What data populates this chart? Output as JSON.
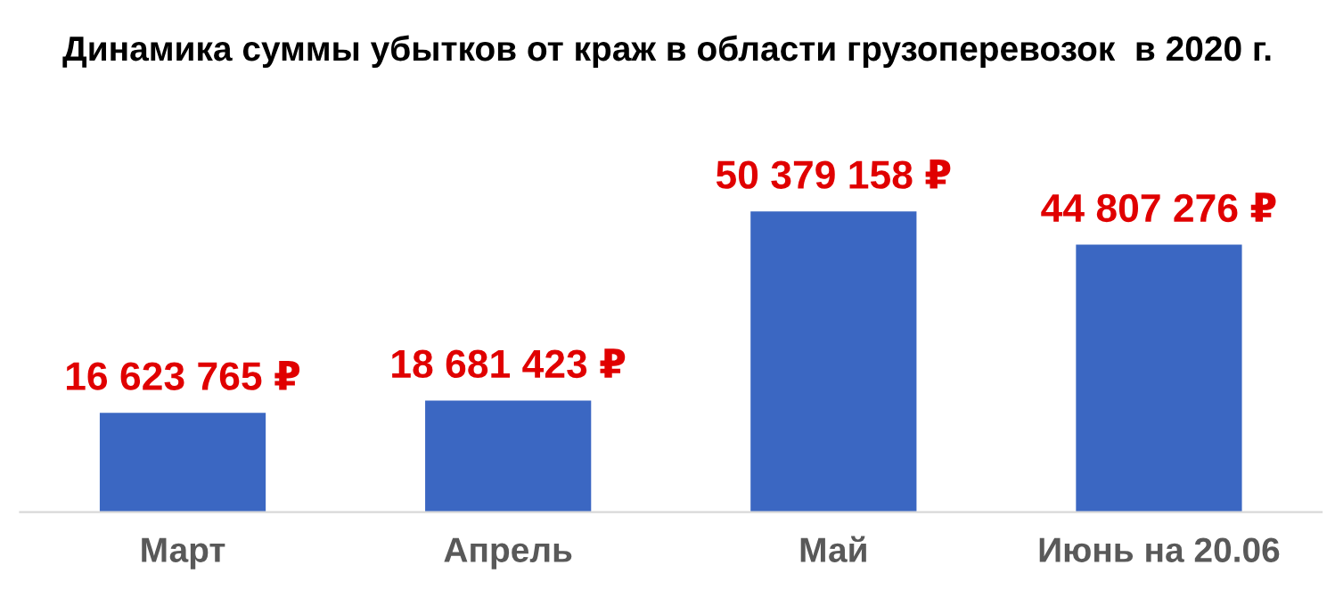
{
  "chart_data": {
    "type": "bar",
    "title": "Динамика суммы убытков от краж в области грузоперевозок  в 2020 г.",
    "categories": [
      "Март",
      "Апрель",
      "Май",
      "Июнь на 20.06"
    ],
    "values": [
      16623765,
      18681423,
      50379158,
      44807276
    ],
    "value_labels": [
      "16 623 765 ₽",
      "18 681 423 ₽",
      "50 379 158 ₽",
      "44 807 276 ₽"
    ],
    "color": "#3b67c2",
    "tick_labels": "x",
    "grid": false,
    "legend": false
  }
}
